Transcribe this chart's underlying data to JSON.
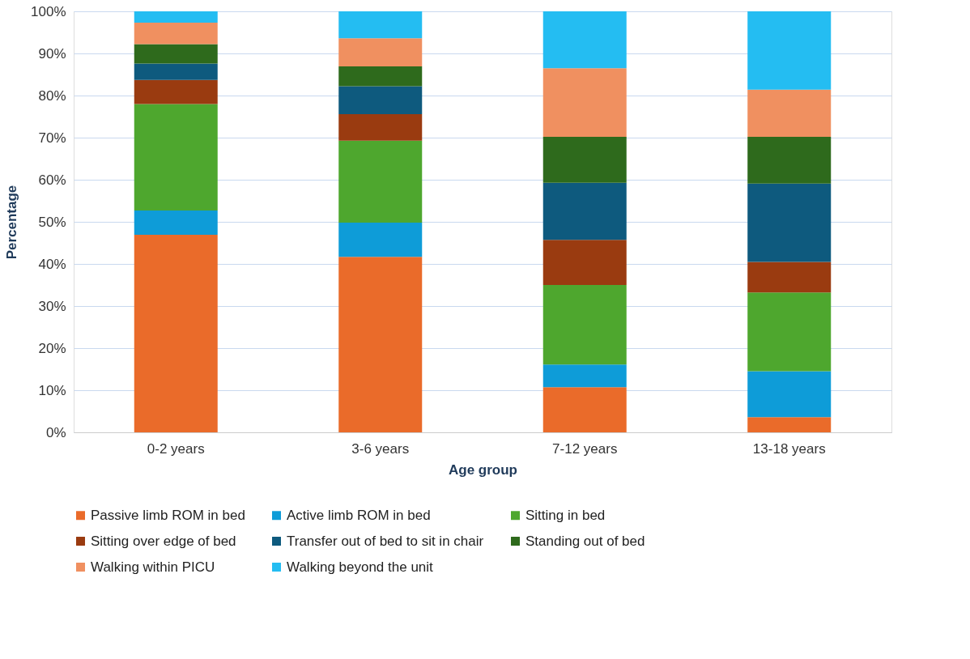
{
  "chart_data": {
    "type": "bar",
    "stacked": true,
    "xlabel": "Age group",
    "ylabel": "Percentage",
    "categories": [
      "0-2 years",
      "3-6 years",
      "7-12 years",
      "13-18 years"
    ],
    "series": [
      {
        "name": "Passive limb ROM in bed",
        "color": "#ea6b2a",
        "values": [
          46.9,
          41.7,
          10.7,
          3.6
        ]
      },
      {
        "name": "Active limb ROM in bed",
        "color": "#0e9cd8",
        "values": [
          5.8,
          8.1,
          5.4,
          10.9
        ]
      },
      {
        "name": "Sitting in bed",
        "color": "#4ea72e",
        "values": [
          25.3,
          19.5,
          18.9,
          18.7
        ]
      },
      {
        "name": "Sitting over edge of bed",
        "color": "#9a3b10",
        "values": [
          5.7,
          6.3,
          10.7,
          7.3
        ]
      },
      {
        "name": "Transfer out of bed to sit in chair",
        "color": "#0e5a7e",
        "values": [
          3.9,
          6.6,
          13.6,
          18.6
        ]
      },
      {
        "name": "Standing out of bed",
        "color": "#2e6a1c",
        "values": [
          4.6,
          4.7,
          10.9,
          11.1
        ]
      },
      {
        "name": "Walking within PICU",
        "color": "#f09060",
        "values": [
          5.1,
          6.7,
          16.3,
          11.2
        ]
      },
      {
        "name": "Walking beyond the unit",
        "color": "#24bdf2",
        "values": [
          2.7,
          6.4,
          13.5,
          18.6
        ]
      }
    ],
    "ylim": [
      0,
      100
    ],
    "yticks": [
      {
        "value": 0,
        "label": "0%"
      },
      {
        "value": 10,
        "label": "10%"
      },
      {
        "value": 20,
        "label": "20%"
      },
      {
        "value": 30,
        "label": "30%"
      },
      {
        "value": 40,
        "label": "40%"
      },
      {
        "value": 50,
        "label": "50%"
      },
      {
        "value": 60,
        "label": "60%"
      },
      {
        "value": 70,
        "label": "70%"
      },
      {
        "value": 80,
        "label": "80%"
      },
      {
        "value": 90,
        "label": "90%"
      },
      {
        "value": 100,
        "label": "100%"
      }
    ],
    "grid": "y",
    "legend": "bottom"
  }
}
